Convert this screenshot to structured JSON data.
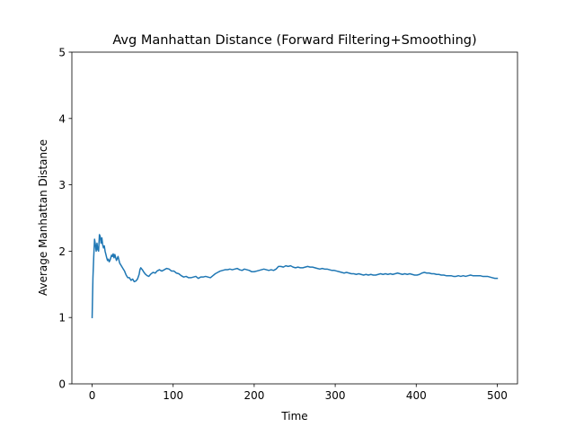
{
  "chart_data": {
    "type": "line",
    "title": "Avg Manhattan Distance (Forward Filtering+Smoothing)",
    "xlabel": "Time",
    "ylabel": "Average Manhattan Distance",
    "xlim": [
      -25,
      525
    ],
    "ylim": [
      0,
      5
    ],
    "xticks": [
      0,
      100,
      200,
      300,
      400,
      500
    ],
    "yticks": [
      0,
      1,
      2,
      3,
      4,
      5
    ],
    "grid": false,
    "legend": "none",
    "series": [
      {
        "color": "#1f77b4",
        "points": [
          [
            0,
            1.0
          ],
          [
            1,
            1.6
          ],
          [
            2,
            1.92
          ],
          [
            3,
            2.18
          ],
          [
            4,
            2.1
          ],
          [
            5,
            2.0
          ],
          [
            6,
            2.12
          ],
          [
            7,
            2.02
          ],
          [
            8,
            2.0
          ],
          [
            9,
            2.25
          ],
          [
            10,
            2.22
          ],
          [
            11,
            2.12
          ],
          [
            12,
            2.2
          ],
          [
            13,
            2.1
          ],
          [
            14,
            2.05
          ],
          [
            15,
            2.08
          ],
          [
            16,
            2.0
          ],
          [
            17,
            1.95
          ],
          [
            18,
            1.9
          ],
          [
            19,
            1.86
          ],
          [
            20,
            1.88
          ],
          [
            21,
            1.84
          ],
          [
            22,
            1.86
          ],
          [
            23,
            1.9
          ],
          [
            24,
            1.94
          ],
          [
            25,
            1.92
          ],
          [
            26,
            1.96
          ],
          [
            27,
            1.9
          ],
          [
            28,
            1.95
          ],
          [
            30,
            1.86
          ],
          [
            32,
            1.92
          ],
          [
            34,
            1.82
          ],
          [
            36,
            1.78
          ],
          [
            38,
            1.74
          ],
          [
            40,
            1.7
          ],
          [
            42,
            1.64
          ],
          [
            44,
            1.6
          ],
          [
            46,
            1.6
          ],
          [
            48,
            1.56
          ],
          [
            50,
            1.58
          ],
          [
            52,
            1.54
          ],
          [
            54,
            1.55
          ],
          [
            56,
            1.58
          ],
          [
            58,
            1.65
          ],
          [
            59,
            1.72
          ],
          [
            60,
            1.75
          ],
          [
            62,
            1.72
          ],
          [
            64,
            1.68
          ],
          [
            66,
            1.65
          ],
          [
            68,
            1.63
          ],
          [
            70,
            1.62
          ],
          [
            72,
            1.65
          ],
          [
            75,
            1.68
          ],
          [
            78,
            1.67
          ],
          [
            80,
            1.7
          ],
          [
            83,
            1.72
          ],
          [
            86,
            1.7
          ],
          [
            89,
            1.72
          ],
          [
            92,
            1.74
          ],
          [
            95,
            1.73
          ],
          [
            98,
            1.7
          ],
          [
            101,
            1.7
          ],
          [
            104,
            1.67
          ],
          [
            107,
            1.66
          ],
          [
            110,
            1.63
          ],
          [
            113,
            1.61
          ],
          [
            116,
            1.62
          ],
          [
            119,
            1.6
          ],
          [
            122,
            1.6
          ],
          [
            125,
            1.61
          ],
          [
            128,
            1.62
          ],
          [
            131,
            1.59
          ],
          [
            134,
            1.61
          ],
          [
            137,
            1.61
          ],
          [
            140,
            1.62
          ],
          [
            143,
            1.61
          ],
          [
            146,
            1.6
          ],
          [
            149,
            1.63
          ],
          [
            152,
            1.66
          ],
          [
            155,
            1.68
          ],
          [
            158,
            1.7
          ],
          [
            161,
            1.71
          ],
          [
            164,
            1.72
          ],
          [
            167,
            1.72
          ],
          [
            170,
            1.73
          ],
          [
            173,
            1.72
          ],
          [
            176,
            1.73
          ],
          [
            179,
            1.74
          ],
          [
            182,
            1.72
          ],
          [
            185,
            1.71
          ],
          [
            188,
            1.73
          ],
          [
            191,
            1.72
          ],
          [
            194,
            1.71
          ],
          [
            197,
            1.69
          ],
          [
            200,
            1.69
          ],
          [
            203,
            1.7
          ],
          [
            206,
            1.71
          ],
          [
            209,
            1.72
          ],
          [
            212,
            1.73
          ],
          [
            215,
            1.72
          ],
          [
            218,
            1.71
          ],
          [
            221,
            1.72
          ],
          [
            224,
            1.71
          ],
          [
            227,
            1.73
          ],
          [
            230,
            1.77
          ],
          [
            233,
            1.77
          ],
          [
            236,
            1.76
          ],
          [
            239,
            1.78
          ],
          [
            242,
            1.77
          ],
          [
            245,
            1.78
          ],
          [
            248,
            1.76
          ],
          [
            251,
            1.75
          ],
          [
            254,
            1.76
          ],
          [
            257,
            1.75
          ],
          [
            260,
            1.75
          ],
          [
            263,
            1.76
          ],
          [
            266,
            1.77
          ],
          [
            269,
            1.76
          ],
          [
            272,
            1.76
          ],
          [
            275,
            1.75
          ],
          [
            278,
            1.74
          ],
          [
            281,
            1.73
          ],
          [
            284,
            1.74
          ],
          [
            287,
            1.73
          ],
          [
            290,
            1.73
          ],
          [
            293,
            1.72
          ],
          [
            296,
            1.71
          ],
          [
            299,
            1.71
          ],
          [
            302,
            1.7
          ],
          [
            305,
            1.69
          ],
          [
            308,
            1.68
          ],
          [
            311,
            1.67
          ],
          [
            314,
            1.68
          ],
          [
            317,
            1.67
          ],
          [
            320,
            1.66
          ],
          [
            323,
            1.66
          ],
          [
            326,
            1.65
          ],
          [
            329,
            1.66
          ],
          [
            332,
            1.65
          ],
          [
            335,
            1.64
          ],
          [
            338,
            1.65
          ],
          [
            341,
            1.64
          ],
          [
            344,
            1.65
          ],
          [
            347,
            1.64
          ],
          [
            350,
            1.64
          ],
          [
            353,
            1.65
          ],
          [
            356,
            1.66
          ],
          [
            359,
            1.65
          ],
          [
            362,
            1.66
          ],
          [
            365,
            1.65
          ],
          [
            368,
            1.66
          ],
          [
            371,
            1.65
          ],
          [
            374,
            1.66
          ],
          [
            377,
            1.67
          ],
          [
            380,
            1.66
          ],
          [
            383,
            1.65
          ],
          [
            386,
            1.66
          ],
          [
            389,
            1.65
          ],
          [
            392,
            1.66
          ],
          [
            395,
            1.65
          ],
          [
            398,
            1.64
          ],
          [
            401,
            1.64
          ],
          [
            404,
            1.65
          ],
          [
            407,
            1.67
          ],
          [
            410,
            1.68
          ],
          [
            413,
            1.67
          ],
          [
            416,
            1.67
          ],
          [
            419,
            1.66
          ],
          [
            422,
            1.66
          ],
          [
            425,
            1.65
          ],
          [
            428,
            1.65
          ],
          [
            431,
            1.64
          ],
          [
            434,
            1.64
          ],
          [
            437,
            1.63
          ],
          [
            440,
            1.63
          ],
          [
            443,
            1.63
          ],
          [
            446,
            1.62
          ],
          [
            449,
            1.62
          ],
          [
            452,
            1.63
          ],
          [
            455,
            1.62
          ],
          [
            458,
            1.63
          ],
          [
            461,
            1.62
          ],
          [
            464,
            1.63
          ],
          [
            467,
            1.64
          ],
          [
            470,
            1.63
          ],
          [
            473,
            1.63
          ],
          [
            476,
            1.63
          ],
          [
            479,
            1.63
          ],
          [
            482,
            1.62
          ],
          [
            485,
            1.62
          ],
          [
            488,
            1.62
          ],
          [
            491,
            1.61
          ],
          [
            494,
            1.6
          ],
          [
            497,
            1.59
          ],
          [
            500,
            1.59
          ]
        ]
      }
    ]
  }
}
